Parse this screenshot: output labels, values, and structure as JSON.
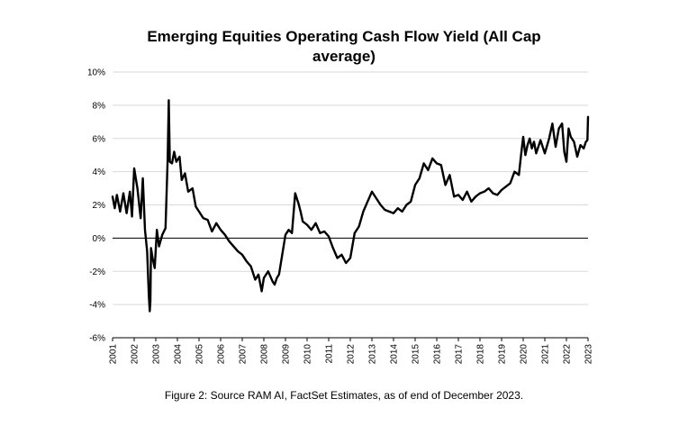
{
  "chart_data": {
    "type": "line",
    "title": "Emerging Equities Operating Cash Flow Yield (All Cap average)",
    "xlabel": "",
    "ylabel": "",
    "xlim": [
      2001,
      2023
    ],
    "ylim": [
      -6,
      10
    ],
    "y_ticks": [
      -6,
      -4,
      -2,
      0,
      2,
      4,
      6,
      8,
      10
    ],
    "y_tick_labels": [
      "-6%",
      "-4%",
      "-2%",
      "0%",
      "2%",
      "4%",
      "6%",
      "8%",
      "10%"
    ],
    "x_ticks": [
      2001,
      2002,
      2003,
      2004,
      2005,
      2006,
      2007,
      2008,
      2009,
      2010,
      2011,
      2012,
      2013,
      2014,
      2015,
      2016,
      2017,
      2018,
      2019,
      2020,
      2021,
      2022,
      2023
    ],
    "x_tick_labels": [
      "2001",
      "2002",
      "2003",
      "2004",
      "2005",
      "2006",
      "2007",
      "2008",
      "2009",
      "2010",
      "2011",
      "2012",
      "2013",
      "2014",
      "2015",
      "2016",
      "2017",
      "2018",
      "2019",
      "2020",
      "2021",
      "2022",
      "2023"
    ],
    "grid": "horizontal",
    "line_color": "#000000",
    "series": [
      {
        "x": [
          2001.0,
          2001.1,
          2001.2,
          2001.35,
          2001.5,
          2001.65,
          2001.8,
          2001.9,
          2002.0,
          2002.15,
          2002.3,
          2002.4,
          2002.5,
          2002.6,
          2002.68,
          2002.72,
          2002.75,
          2002.78,
          2002.85,
          2002.95,
          2003.05,
          2003.15,
          2003.3,
          2003.45,
          2003.55,
          2003.6,
          2003.65,
          2003.75,
          2003.85,
          2003.95,
          2004.1,
          2004.2,
          2004.35,
          2004.5,
          2004.7,
          2004.85,
          2005.0,
          2005.2,
          2005.4,
          2005.6,
          2005.8,
          2006.0,
          2006.2,
          2006.4,
          2006.6,
          2006.8,
          2007.0,
          2007.2,
          2007.4,
          2007.6,
          2007.75,
          2007.9,
          2008.0,
          2008.2,
          2008.4,
          2008.5,
          2008.6,
          2008.7,
          2008.85,
          2009.0,
          2009.15,
          2009.3,
          2009.45,
          2009.6,
          2009.7,
          2009.8,
          2010.0,
          2010.2,
          2010.4,
          2010.6,
          2010.8,
          2011.0,
          2011.2,
          2011.4,
          2011.6,
          2011.8,
          2012.0,
          2012.2,
          2012.4,
          2012.6,
          2012.8,
          2013.0,
          2013.2,
          2013.4,
          2013.6,
          2013.8,
          2014.0,
          2014.2,
          2014.4,
          2014.6,
          2014.8,
          2015.0,
          2015.2,
          2015.4,
          2015.6,
          2015.8,
          2016.0,
          2016.2,
          2016.4,
          2016.6,
          2016.8,
          2017.0,
          2017.2,
          2017.4,
          2017.6,
          2017.8,
          2018.0,
          2018.2,
          2018.4,
          2018.6,
          2018.8,
          2019.0,
          2019.2,
          2019.4,
          2019.6,
          2019.8,
          2019.9,
          2020.0,
          2020.1,
          2020.2,
          2020.3,
          2020.4,
          2020.5,
          2020.6,
          2020.8,
          2021.0,
          2021.2,
          2021.35,
          2021.5,
          2021.65,
          2021.8,
          2021.9,
          2022.0,
          2022.1,
          2022.2,
          2022.35,
          2022.5,
          2022.65,
          2022.8,
          2022.9,
          2022.97,
          2023.0
        ],
        "values": [
          2.5,
          1.8,
          2.6,
          1.6,
          2.7,
          1.5,
          2.8,
          1.3,
          4.2,
          3.0,
          1.2,
          3.6,
          0.5,
          -0.8,
          -3.5,
          -4.4,
          -3.8,
          -0.6,
          -1.2,
          -1.8,
          0.5,
          -0.5,
          0.2,
          0.6,
          4.8,
          8.3,
          4.6,
          4.5,
          5.2,
          4.6,
          4.9,
          3.5,
          3.9,
          2.8,
          3.0,
          1.9,
          1.6,
          1.2,
          1.1,
          0.4,
          0.9,
          0.5,
          0.2,
          -0.2,
          -0.5,
          -0.8,
          -1.0,
          -1.4,
          -1.7,
          -2.5,
          -2.2,
          -3.2,
          -2.4,
          -2.0,
          -2.6,
          -2.8,
          -2.4,
          -2.2,
          -1.0,
          0.2,
          0.5,
          0.3,
          2.7,
          2.1,
          1.6,
          1.0,
          0.8,
          0.5,
          0.9,
          0.3,
          0.4,
          0.1,
          -0.6,
          -1.2,
          -1.0,
          -1.5,
          -1.2,
          0.3,
          0.7,
          1.6,
          2.2,
          2.8,
          2.4,
          2.0,
          1.7,
          1.6,
          1.5,
          1.8,
          1.6,
          2.0,
          2.2,
          3.2,
          3.6,
          4.5,
          4.1,
          4.8,
          4.5,
          4.4,
          3.2,
          3.8,
          2.5,
          2.6,
          2.3,
          2.8,
          2.2,
          2.5,
          2.7,
          2.8,
          3.0,
          2.7,
          2.6,
          2.9,
          3.1,
          3.3,
          4.0,
          3.8,
          5.0,
          6.1,
          5.0,
          5.6,
          6.0,
          5.4,
          5.8,
          5.1,
          5.9,
          5.1,
          6.0,
          6.9,
          5.5,
          6.6,
          6.9,
          5.2,
          4.6,
          6.6,
          6.1,
          5.8,
          4.9,
          5.6,
          5.4,
          5.8,
          5.9,
          7.3
        ]
      }
    ]
  },
  "caption": "Figure 2: Source RAM AI, FactSet Estimates, as of end of December 2023."
}
